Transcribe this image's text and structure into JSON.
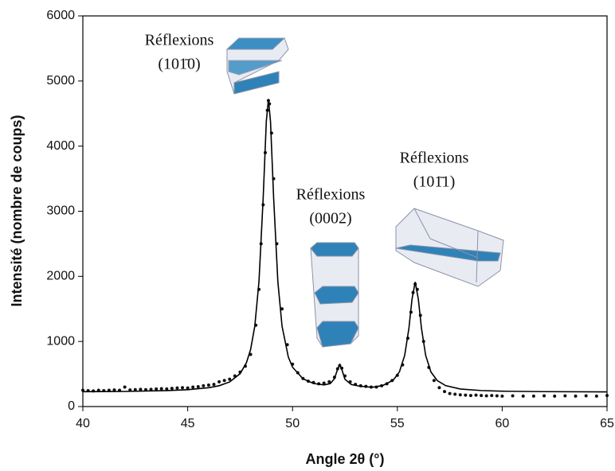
{
  "chart_data": {
    "type": "line",
    "xlabel": "Angle 2θ (°)",
    "ylabel": "Intensité (nombre de coups)",
    "xlim": [
      40,
      65
    ],
    "ylim": [
      0,
      6000
    ],
    "xticks": [
      40,
      45,
      50,
      55,
      60,
      65
    ],
    "yticks": [
      0,
      1000,
      2000,
      3000,
      4000,
      5000,
      6000
    ],
    "annotations": [
      {
        "line1": "Réflexions",
        "line2": "(101̄0)"
      },
      {
        "line1": "Réflexions",
        "line2": "(0002)"
      },
      {
        "line1": "Réflexions",
        "line2": "(101̄1)"
      }
    ],
    "series": [
      {
        "mode": "markers",
        "color": "#111111",
        "x": [
          40,
          40.25,
          40.5,
          40.75,
          41,
          41.25,
          41.5,
          41.75,
          42,
          42.25,
          42.5,
          42.75,
          43,
          43.25,
          43.5,
          43.75,
          44,
          44.25,
          44.5,
          44.75,
          45,
          45.25,
          45.5,
          45.75,
          46,
          46.25,
          46.5,
          46.75,
          47,
          47.25,
          47.5,
          47.75,
          48,
          48.25,
          48.4,
          48.5,
          48.6,
          48.7,
          48.8,
          48.85,
          48.9,
          49,
          49.1,
          49.25,
          49.5,
          49.75,
          50,
          50.25,
          50.5,
          50.75,
          51,
          51.25,
          51.5,
          51.75,
          52,
          52.15,
          52.25,
          52.35,
          52.5,
          52.75,
          53,
          53.25,
          53.5,
          53.75,
          54,
          54.25,
          54.5,
          54.75,
          55,
          55.25,
          55.5,
          55.65,
          55.75,
          55.85,
          55.95,
          56.1,
          56.25,
          56.5,
          56.75,
          57,
          57.25,
          57.5,
          57.75,
          58,
          58.25,
          58.5,
          58.75,
          59,
          59.25,
          59.5,
          59.75,
          60,
          60.5,
          61,
          61.5,
          62,
          62.5,
          63,
          63.5,
          64,
          64.5,
          65
        ],
        "values": [
          250,
          245,
          240,
          250,
          245,
          250,
          255,
          250,
          300,
          255,
          260,
          265,
          260,
          265,
          270,
          275,
          270,
          280,
          285,
          290,
          285,
          300,
          305,
          320,
          330,
          340,
          380,
          400,
          420,
          470,
          530,
          620,
          800,
          1250,
          1800,
          2500,
          3100,
          3900,
          4550,
          4700,
          4650,
          4200,
          3500,
          2500,
          1500,
          950,
          650,
          520,
          430,
          390,
          370,
          350,
          360,
          380,
          450,
          580,
          630,
          590,
          470,
          380,
          340,
          320,
          310,
          300,
          300,
          320,
          350,
          400,
          480,
          640,
          1050,
          1450,
          1750,
          1880,
          1800,
          1400,
          1000,
          600,
          400,
          290,
          230,
          200,
          190,
          180,
          175,
          170,
          175,
          170,
          165,
          170,
          165,
          160,
          165,
          160,
          160,
          165,
          160,
          165,
          160,
          165,
          160,
          170
        ]
      },
      {
        "mode": "lines",
        "color": "#000000",
        "x": [
          40,
          42,
          44,
          45,
          46,
          46.5,
          47,
          47.5,
          47.8,
          48,
          48.2,
          48.4,
          48.6,
          48.75,
          48.85,
          48.95,
          49.1,
          49.3,
          49.5,
          49.8,
          50,
          50.5,
          51,
          51.5,
          51.8,
          52,
          52.15,
          52.25,
          52.35,
          52.5,
          52.8,
          53.2,
          53.8,
          54.3,
          54.8,
          55.1,
          55.35,
          55.55,
          55.7,
          55.85,
          56,
          56.15,
          56.35,
          56.6,
          56.9,
          57.3,
          58,
          59,
          60,
          62,
          65
        ],
        "values": [
          228,
          232,
          245,
          259,
          290,
          320,
          378,
          505,
          672,
          875,
          1233,
          1920,
          3200,
          4380,
          4720,
          4380,
          3200,
          1920,
          1235,
          760,
          605,
          426,
          354,
          332,
          353,
          428,
          574,
          644,
          571,
          419,
          339,
          313,
          296,
          323,
          405,
          534,
          787,
          1200,
          1652,
          1913,
          1652,
          1200,
          787,
          532,
          400,
          322,
          270,
          246,
          236,
          229,
          225
        ]
      }
    ]
  }
}
